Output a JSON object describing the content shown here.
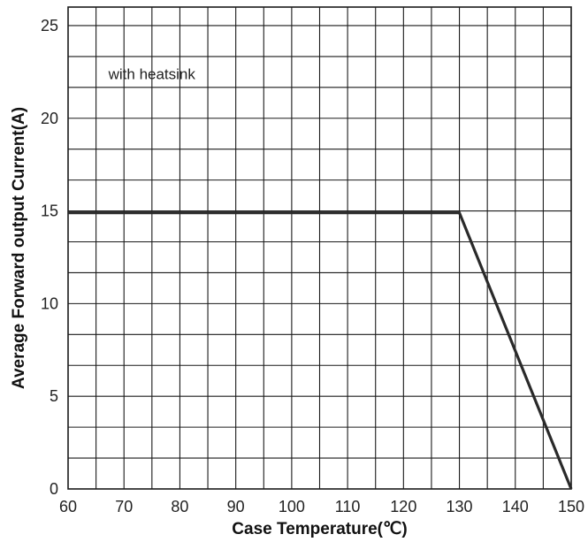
{
  "chart_data": {
    "type": "line",
    "xlabel": "Case Temperature(℃)",
    "ylabel": "Average Forward output Current(A)",
    "xlim": [
      60,
      150
    ],
    "ylim": [
      0,
      26
    ],
    "x_ticks": [
      60,
      70,
      80,
      90,
      100,
      110,
      120,
      130,
      140,
      150
    ],
    "y_ticks": [
      0,
      5,
      10,
      15,
      20,
      25
    ],
    "x_grid_step": 5,
    "y_grid_step": 1.6667,
    "grid": true,
    "annotation": "with heatsink",
    "annotation_position": {
      "x": 65,
      "y": 22.4
    },
    "series": [
      {
        "x": [
          60,
          130,
          150
        ],
        "y": [
          14.9,
          14.9,
          0
        ]
      }
    ]
  }
}
